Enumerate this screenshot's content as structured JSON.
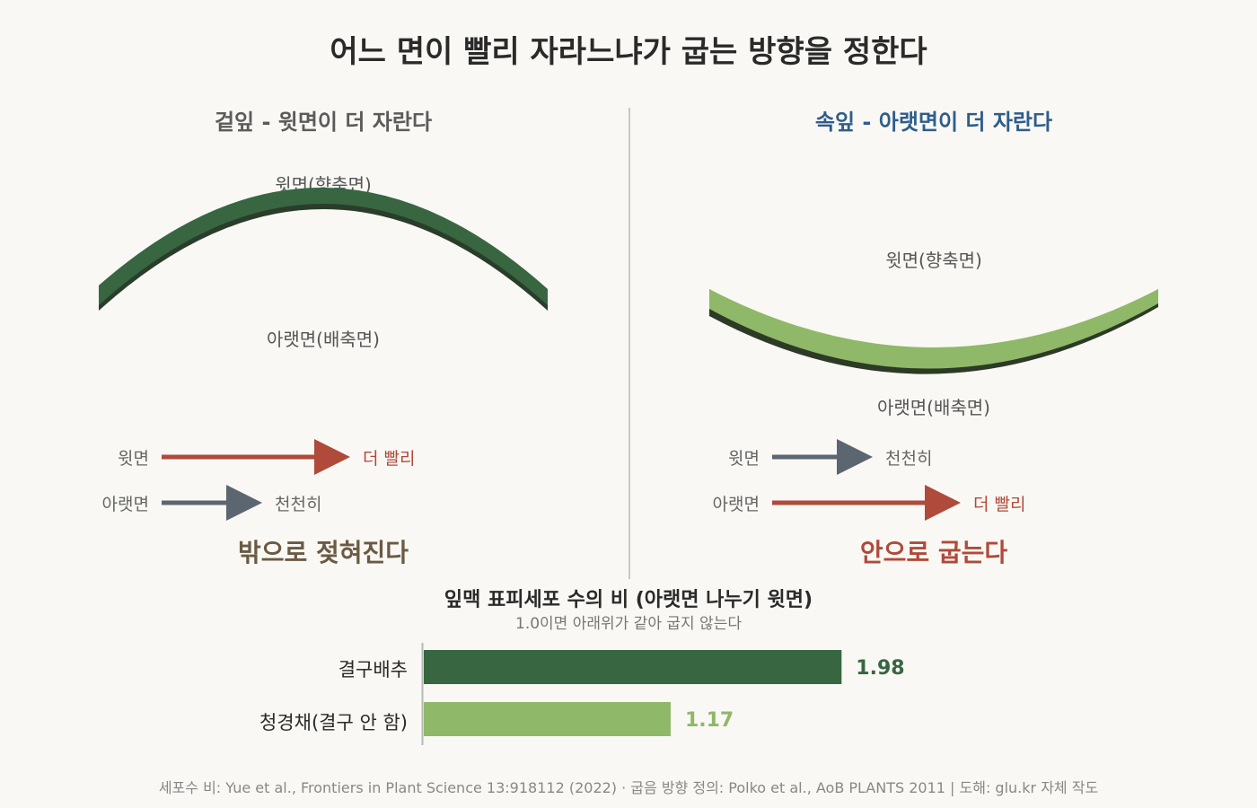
{
  "title": "어느 면이 빨리 자라느냐가 굽는 방향을 정한다",
  "colors": {
    "dark_green": "#386641",
    "light_green": "#8fb868",
    "red": "#b04a3a",
    "slate": "#5c6670",
    "brown": "#6b5a43",
    "blue": "#2f5d8c"
  },
  "left_panel": {
    "heading": "겉잎 - 윗면이 더 자란다",
    "upper_label": "윗면(향축면)",
    "lower_label": "아랫면(배축면)",
    "arrows": [
      {
        "side": "윗면",
        "speed": "더 빨리",
        "fast": true
      },
      {
        "side": "아랫면",
        "speed": "천천히",
        "fast": false
      }
    ],
    "result": "밖으로 젖혀진다"
  },
  "right_panel": {
    "heading": "속잎 - 아랫면이 더 자란다",
    "upper_label": "윗면(향축면)",
    "lower_label": "아랫면(배축면)",
    "arrows": [
      {
        "side": "윗면",
        "speed": "천천히",
        "fast": false
      },
      {
        "side": "아랫면",
        "speed": "더 빨리",
        "fast": true
      }
    ],
    "result": "안으로 굽는다"
  },
  "chart_data": {
    "type": "bar",
    "orientation": "horizontal",
    "title": "잎맥 표피세포 수의 비 (아랫면 나누기 윗면)",
    "subtitle": "1.0이면 아래위가 같아 굽지 않는다",
    "categories": [
      "결구배추",
      "청경채(결구 안 함)"
    ],
    "values": [
      1.98,
      1.17
    ],
    "value_labels": [
      "1.98",
      "1.17"
    ],
    "colors": [
      "#386641",
      "#8fb868"
    ]
  },
  "footer": "세포수 비: Yue et al., Frontiers in Plant Science 13:918112 (2022) · 굽음 방향 정의: Polko et al., AoB PLANTS 2011  |  도해: glu.kr 자체 작도"
}
